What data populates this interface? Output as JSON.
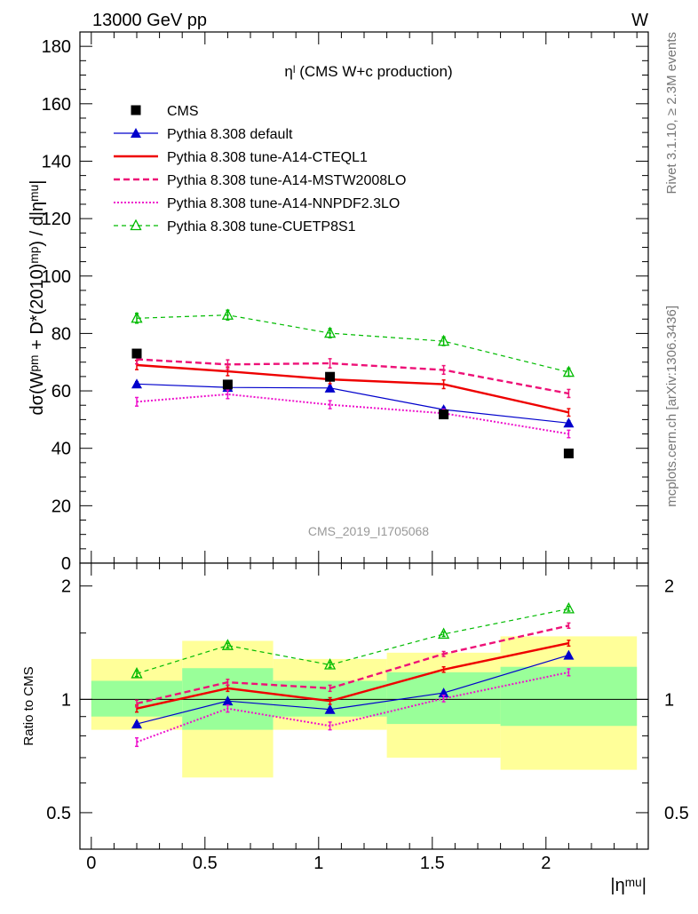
{
  "header": {
    "energy_label": "13000 GeV pp",
    "process_label": "W"
  },
  "side_labels": {
    "rivet": "Rivet 3.1.10, ≥ 2.3M events",
    "mcplots": "mcplots.cern.ch [arXiv:1306.3436]"
  },
  "watermark": "CMS_2019_I1705068",
  "chart_data": [
    {
      "type": "line",
      "panel": "main",
      "title": "ηˡ (CMS W+c production)",
      "ylabel": "dσ(Wᵖᵐ + D*(2010)ᵐᵖ) / d|ηᵐᵘ|",
      "ylim": [
        0,
        185
      ],
      "yticks": [
        0,
        20,
        40,
        60,
        80,
        100,
        120,
        140,
        160,
        180
      ],
      "xlim": [
        -0.05,
        2.45
      ],
      "legend": {
        "placement": "top-left"
      },
      "series": [
        {
          "name": "CMS",
          "color": "#000000",
          "marker": "square",
          "line": "none",
          "x": [
            0.2,
            0.6,
            1.05,
            1.55,
            2.1
          ],
          "y": [
            73.0,
            62.2,
            64.9,
            51.8,
            38.2
          ],
          "err": [
            0,
            0,
            0,
            0,
            0
          ]
        },
        {
          "name": "Pythia 8.308 default",
          "color": "#0000cc",
          "marker": "triangle",
          "line": "solid-thin",
          "x": [
            0.2,
            0.6,
            1.05,
            1.55,
            2.1
          ],
          "y": [
            62.4,
            61.2,
            61.0,
            53.5,
            48.8
          ],
          "err": [
            0.8,
            0.8,
            0.8,
            0.8,
            0.8
          ]
        },
        {
          "name": "Pythia 8.308 tune-A14-CTEQL1",
          "color": "#ee0000",
          "marker": "none",
          "line": "solid-thick",
          "x": [
            0.2,
            0.6,
            1.05,
            1.55,
            2.1
          ],
          "y": [
            69.0,
            66.8,
            64.0,
            62.3,
            52.5
          ],
          "err": [
            1.6,
            1.5,
            1.5,
            1.5,
            1.3
          ]
        },
        {
          "name": "Pythia 8.308 tune-A14-MSTW2008LO",
          "color": "#ee1177",
          "marker": "none",
          "line": "dashed-thick",
          "x": [
            0.2,
            0.6,
            1.05,
            1.55,
            2.1
          ],
          "y": [
            71.0,
            69.2,
            69.6,
            67.3,
            59.1
          ],
          "err": [
            1.6,
            1.6,
            1.6,
            1.5,
            1.4
          ]
        },
        {
          "name": "Pythia 8.308 tune-A14-NNPDF2.3LO",
          "color": "#ee11cc",
          "marker": "none",
          "line": "dotted",
          "x": [
            0.2,
            0.6,
            1.05,
            1.55,
            2.1
          ],
          "y": [
            56.2,
            58.8,
            55.2,
            52.2,
            45.0
          ],
          "err": [
            1.5,
            1.5,
            1.4,
            1.4,
            1.3
          ]
        },
        {
          "name": "Pythia 8.308 tune-CUETP8S1",
          "color": "#00bb00",
          "marker": "open-triangle",
          "line": "dashed-thin",
          "x": [
            0.2,
            0.6,
            1.05,
            1.55,
            2.1
          ],
          "y": [
            85.3,
            86.4,
            80.1,
            77.3,
            66.5
          ],
          "err": [
            1.7,
            1.7,
            1.6,
            1.5,
            1.4
          ]
        }
      ]
    },
    {
      "type": "line",
      "panel": "ratio",
      "ylabel": "Ratio to CMS",
      "xlabel": "|ηᵐᵘ|",
      "yscale": "log",
      "ylim": [
        0.4,
        2.3
      ],
      "yticks": [
        0.5,
        1,
        2
      ],
      "xticks": [
        0,
        0.5,
        1,
        1.5,
        2
      ],
      "xlim": [
        -0.05,
        2.45
      ],
      "reference": 1,
      "bands": [
        {
          "x": [
            0.0,
            0.4
          ],
          "stat": [
            0.9,
            1.12
          ],
          "total": [
            0.83,
            1.28
          ]
        },
        {
          "x": [
            0.4,
            0.8
          ],
          "stat": [
            0.83,
            1.21
          ],
          "total": [
            0.62,
            1.43
          ]
        },
        {
          "x": [
            0.8,
            1.3
          ],
          "stat": [
            0.9,
            1.12
          ],
          "total": [
            0.83,
            1.28
          ]
        },
        {
          "x": [
            1.3,
            1.8
          ],
          "stat": [
            0.86,
            1.18
          ],
          "total": [
            0.7,
            1.33
          ]
        },
        {
          "x": [
            1.8,
            2.4
          ],
          "stat": [
            0.85,
            1.22
          ],
          "total": [
            0.65,
            1.47
          ]
        }
      ],
      "series": [
        {
          "name": "Pythia 8.308 default",
          "color": "#0000cc",
          "marker": "triangle",
          "line": "solid-thin",
          "x": [
            0.2,
            0.6,
            1.05,
            1.55,
            2.1
          ],
          "y": [
            0.86,
            0.99,
            0.94,
            1.04,
            1.31
          ],
          "err": [
            0.01,
            0.01,
            0.01,
            0.01,
            0.015
          ]
        },
        {
          "name": "Pythia 8.308 tune-A14-CTEQL1",
          "color": "#ee0000",
          "marker": "none",
          "line": "solid-thick",
          "x": [
            0.2,
            0.6,
            1.05,
            1.55,
            2.1
          ],
          "y": [
            0.945,
            1.07,
            0.99,
            1.2,
            1.41
          ],
          "err": [
            0.02,
            0.02,
            0.02,
            0.02,
            0.025
          ]
        },
        {
          "name": "Pythia 8.308 tune-A14-MSTW2008LO",
          "color": "#ee1177",
          "marker": "none",
          "line": "dashed-thick",
          "x": [
            0.2,
            0.6,
            1.05,
            1.55,
            2.1
          ],
          "y": [
            0.975,
            1.11,
            1.07,
            1.32,
            1.57
          ],
          "err": [
            0.02,
            0.02,
            0.02,
            0.02,
            0.025
          ]
        },
        {
          "name": "Pythia 8.308 tune-A14-NNPDF2.3LO",
          "color": "#ee11cc",
          "marker": "none",
          "line": "dotted",
          "x": [
            0.2,
            0.6,
            1.05,
            1.55,
            2.1
          ],
          "y": [
            0.77,
            0.945,
            0.85,
            1.005,
            1.18
          ],
          "err": [
            0.02,
            0.02,
            0.02,
            0.02,
            0.025
          ]
        },
        {
          "name": "Pythia 8.308 tune-CUETP8S1",
          "color": "#00bb00",
          "marker": "open-triangle",
          "line": "dashed-thin",
          "x": [
            0.2,
            0.6,
            1.05,
            1.55,
            2.1
          ],
          "y": [
            1.17,
            1.39,
            1.235,
            1.49,
            1.74
          ],
          "err": [
            0.02,
            0.02,
            0.02,
            0.02,
            0.025
          ]
        }
      ]
    }
  ]
}
